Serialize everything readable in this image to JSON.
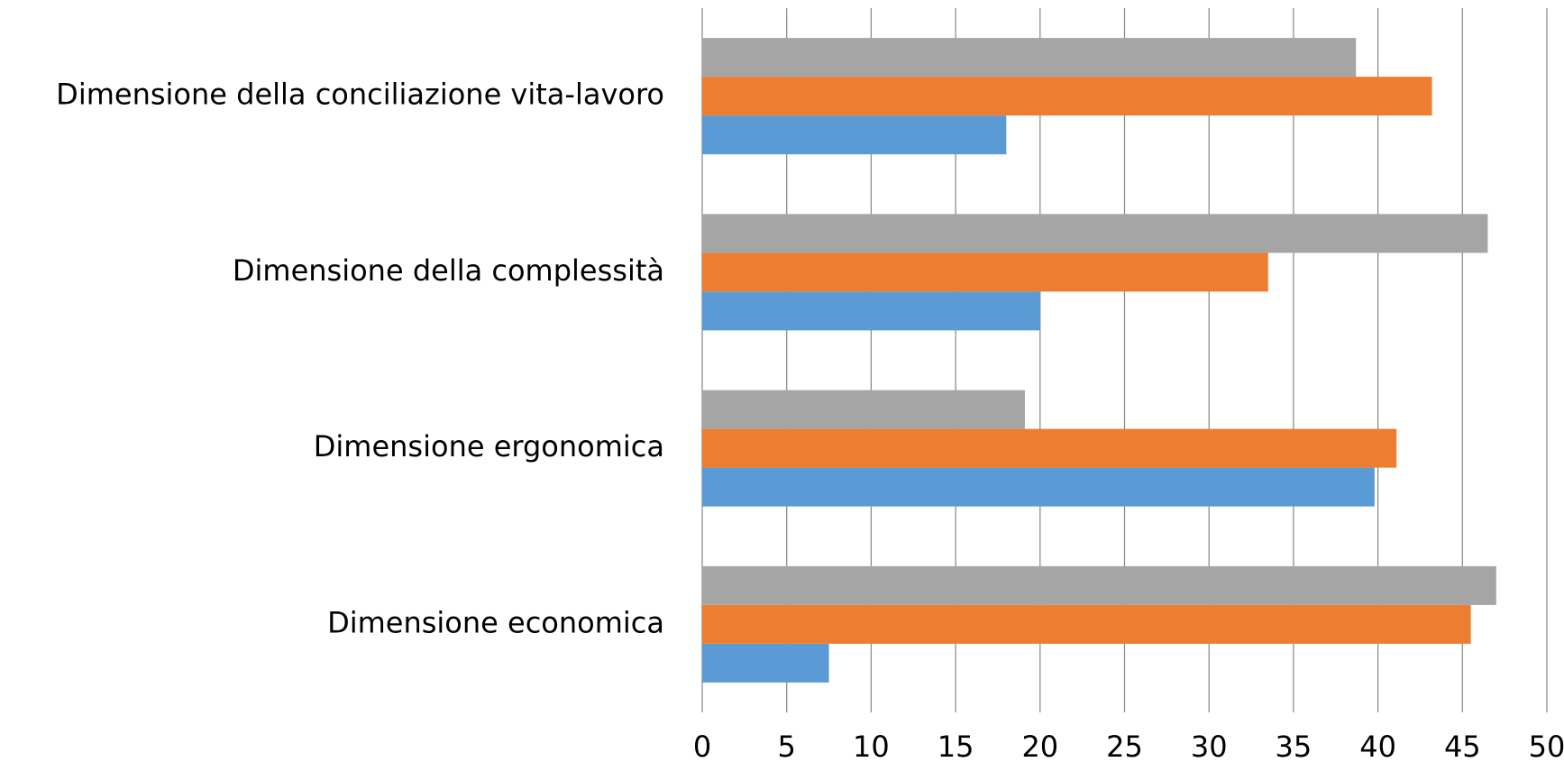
{
  "chart_data": {
    "type": "barh",
    "categories": [
      "Dimensione economica",
      "Dimensione ergonomica",
      "Dimensione della complessità",
      "Dimensione della conciliazione vita-lavoro"
    ],
    "series": [
      {
        "color": "#5b9bd5",
        "values": [
          7.5,
          39.8,
          20,
          18
        ]
      },
      {
        "color": "#ed7d31",
        "values": [
          45.5,
          41.1,
          33.5,
          43.2
        ]
      },
      {
        "color": "#a5a5a5",
        "values": [
          47,
          19.1,
          46.5,
          38.7
        ]
      }
    ],
    "xlim": [
      0,
      50
    ],
    "xticks": [
      0,
      5,
      10,
      15,
      20,
      25,
      30,
      35,
      40,
      45,
      50
    ],
    "grid": true
  }
}
